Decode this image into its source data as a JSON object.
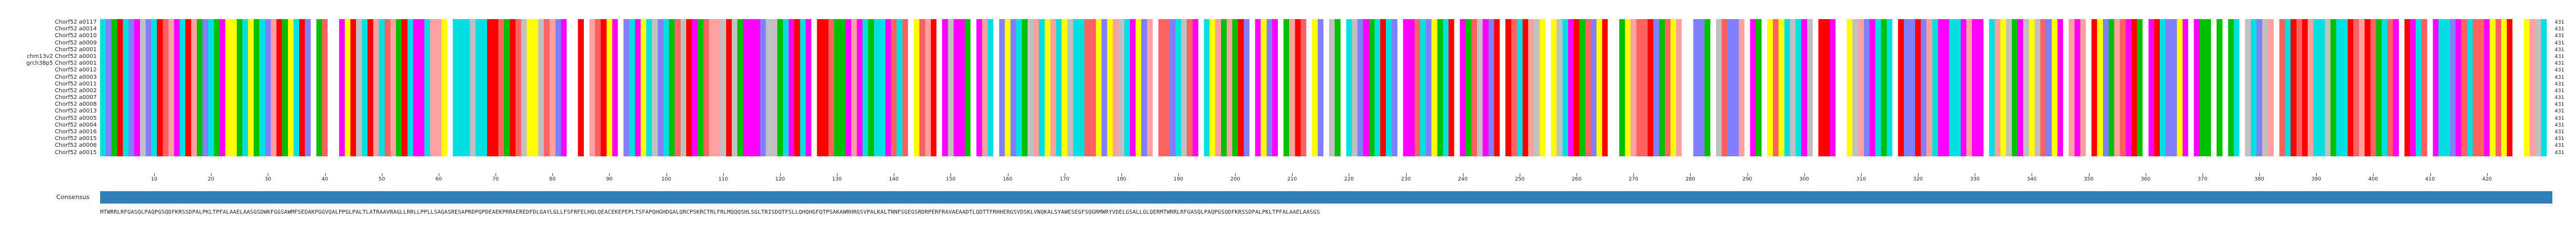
{
  "sequences": [
    {
      "name": "Chorf52 a0117",
      "length": "431"
    },
    {
      "name": "Chorf52 a0014",
      "length": "431"
    },
    {
      "name": "Chorf52 a0010",
      "length": "431"
    },
    {
      "name": "Chorf52 a0009",
      "length": "431"
    },
    {
      "name": "Chorf52 a0001",
      "length": "431"
    },
    {
      "name": "chm13v2 Chorf52 a0001",
      "length": "431"
    },
    {
      "name": "grch38p5 Chorf52 a0001",
      "length": "431"
    },
    {
      "name": "Chorf52 a0012",
      "length": "431"
    },
    {
      "name": "Chorf52 a0003",
      "length": "431"
    },
    {
      "name": "Chorf52 a0011",
      "length": "431"
    },
    {
      "name": "Chorf52 a0002",
      "length": "431"
    },
    {
      "name": "Chorf52 a0007",
      "length": "431"
    },
    {
      "name": "Chorf52 a0008",
      "length": "431"
    },
    {
      "name": "Chorf52 a0013",
      "length": "431"
    },
    {
      "name": "Chorf52 a0005",
      "length": "431"
    },
    {
      "name": "Chorf52 a0004",
      "length": "431"
    },
    {
      "name": "Chorf52 a0016",
      "length": "431"
    },
    {
      "name": "Chorf52 a0015",
      "length": "431"
    },
    {
      "name": "Chorf52 a0006",
      "length": "431"
    },
    {
      "name": "Chorf52 a0015",
      "length": "431"
    }
  ],
  "ruler_ticks": [
    "10",
    "20",
    "30",
    "40",
    "50",
    "60",
    "70",
    "80",
    "90",
    "100",
    "110",
    "120",
    "130",
    "140",
    "150",
    "160",
    "170",
    "180",
    "190",
    "200",
    "210",
    "220",
    "230",
    "240",
    "250",
    "260",
    "270",
    "280",
    "290",
    "300",
    "310",
    "320",
    "330",
    "340",
    "350",
    "360",
    "370",
    "380",
    "390",
    "400",
    "410",
    "420"
  ],
  "consensus": {
    "label": "Consensus",
    "sequence": "MTWRRLRFGASQLPAQPGSQDFKRSSDPALPKLTPFALAAELAASGSDWKFGGSAWMFSEDAKPGGVQALPPGLPALTLATRAAVRAGLLRRLLPPLLSAGASRESAPRDPQPDEAEKPRRAEREDFDLGAYLGLLFSFRFELHQLQEACEKEPEPLTSFAPQHGHDGALQRCPSKRCTRLFRLMQQQSHLSGLTRISDQTFSLLQHQHGFQTPSAKAWRHRGSVPALKALTNNFSGEGSRDRPERFRAVAEAADTLQDTTFRHHERGSVDSKLVNQKALSYAWESEGFSQGRMWRYVDELGSALLGLQERMTWRRLRFGASQLPAQPGSQDFKRSSDPALPKLTPFALAAELAASGS",
    "colors": [
      "#ff00ff",
      "#00c000",
      "#ff0000",
      "#ffffff",
      "#00e0e0",
      "#8080ff",
      "#ffa0a0",
      "#ff6060",
      "#c0c0c0",
      "#ffff00"
    ]
  },
  "palette": {
    "A": "#ffaaaa",
    "B": "#ff00ff",
    "C": "#00cc00",
    "D": "#ff0000",
    "E": "#00cccc",
    "F": "#8888ff",
    "G": "#ff8888",
    "H": "#ffffff",
    "I": "#cccc00",
    "J": "#aaaaaa"
  }
}
